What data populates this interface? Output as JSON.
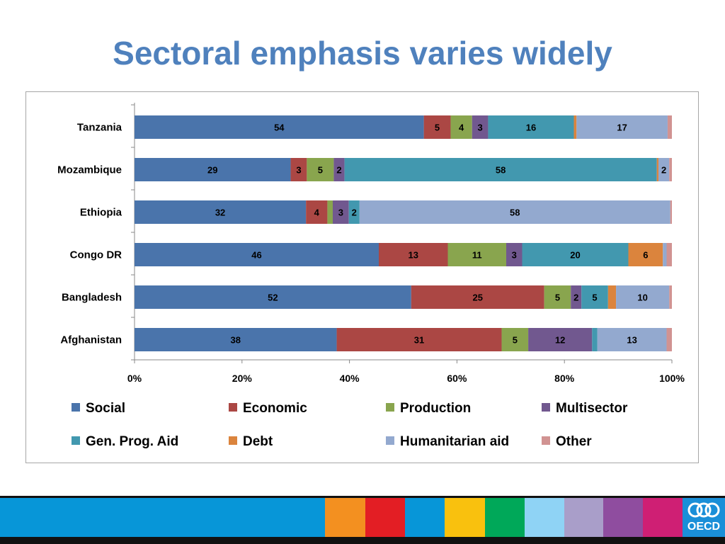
{
  "slide": {
    "title": "Sectoral emphasis varies widely"
  },
  "logo": {
    "text": "OECD"
  },
  "footer_colors": [
    "#0796d8",
    "#f39020",
    "#e31e24",
    "#0796d8",
    "#f9c10e",
    "#00a859",
    "#8fd3f5",
    "#a99ec9",
    "#8f4d9f",
    "#cf1f74",
    "#1a8fd8"
  ],
  "chart_data": {
    "type": "bar",
    "orientation": "horizontal",
    "stacked": "percent",
    "categories": [
      "Tanzania",
      "Mozambique",
      "Ethiopia",
      "Congo DR",
      "Bangladesh",
      "Afghanistan"
    ],
    "series": [
      {
        "name": "Social",
        "color": "#4a74ab",
        "label_color": "#000000",
        "values": [
          54,
          29,
          32,
          46,
          52,
          38
        ],
        "labels": [
          "54",
          "29",
          "32",
          "46",
          "52",
          "38"
        ]
      },
      {
        "name": "Economic",
        "color": "#ab4744",
        "label_color": "#000000",
        "values": [
          5,
          3,
          4,
          13,
          25,
          31
        ],
        "labels": [
          "5",
          "3",
          "4",
          "13",
          "25",
          "31"
        ]
      },
      {
        "name": "Production",
        "color": "#89a54e",
        "label_color": "#000000",
        "values": [
          4,
          5,
          1,
          11,
          5,
          5
        ],
        "labels": [
          "4",
          "5",
          "",
          "11",
          "5",
          "5"
        ]
      },
      {
        "name": "Multisector",
        "color": "#71588f",
        "label_color": "#000000",
        "values": [
          3,
          2,
          3,
          3,
          2,
          12
        ],
        "labels": [
          "3",
          "2",
          "3",
          "3",
          "2",
          "12"
        ]
      },
      {
        "name": "Gen. Prog. Aid",
        "color": "#4298af",
        "label_color": "#000000",
        "values": [
          16,
          58,
          2,
          20,
          5,
          1
        ],
        "labels": [
          "16",
          "58",
          "2",
          "20",
          "5",
          ""
        ]
      },
      {
        "name": "Debt",
        "color": "#db843d",
        "label_color": "#000000",
        "values": [
          0.5,
          0.3,
          0,
          6.5,
          1.5,
          0
        ],
        "labels": [
          "",
          "",
          "",
          "6",
          "",
          ""
        ]
      },
      {
        "name": "Humanitarian aid",
        "color": "#93a9cf",
        "label_color": "#000000",
        "values": [
          17,
          2,
          58,
          0.7,
          10,
          13
        ],
        "labels": [
          "17",
          "2",
          "58",
          "",
          "10",
          "13"
        ]
      },
      {
        "name": "Other",
        "color": "#d19392",
        "label_color": "#000000",
        "values": [
          0.8,
          0.5,
          0.3,
          1,
          0.5,
          1
        ],
        "labels": [
          "",
          "",
          "",
          "",
          "",
          ""
        ]
      }
    ],
    "x_ticks": [
      "0%",
      "20%",
      "40%",
      "60%",
      "80%",
      "100%"
    ],
    "xlim": [
      0,
      100
    ],
    "grid": false,
    "legend_position": "bottom"
  }
}
